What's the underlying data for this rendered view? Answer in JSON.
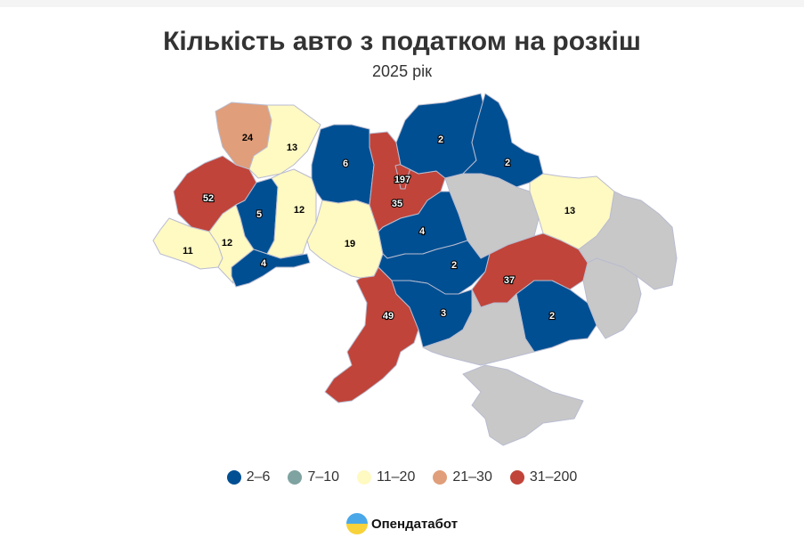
{
  "title": "Кількість авто з податком на розкіш",
  "subtitle": "2025 рік",
  "legend": [
    {
      "label": "2–6",
      "color": "#004f93"
    },
    {
      "label": "7–10",
      "color": "#7fa3a1"
    },
    {
      "label": "11–20",
      "color": "#fff9c2"
    },
    {
      "label": "21–30",
      "color": "#e09e7a"
    },
    {
      "label": "31–200",
      "color": "#c0443a"
    }
  ],
  "no_data_color": "#c8c8c8",
  "logo_text": "Опендатабот",
  "chart_data": {
    "type": "choropleth",
    "bins": [
      [
        2,
        6
      ],
      [
        7,
        10
      ],
      [
        11,
        20
      ],
      [
        21,
        30
      ],
      [
        31,
        200
      ]
    ],
    "regions": [
      {
        "value": 24
      },
      {
        "value": 13
      },
      {
        "value": 52
      },
      {
        "value": 11
      },
      {
        "value": 12
      },
      {
        "value": 5
      },
      {
        "value": 4
      },
      {
        "value": 12
      },
      {
        "value": 6
      },
      {
        "value": 19
      },
      {
        "value": 35
      },
      {
        "value": 197
      },
      {
        "value": 2
      },
      {
        "value": 2
      },
      {
        "value": 13
      },
      {
        "value": 4
      },
      {
        "value": 2
      },
      {
        "value": 49
      },
      {
        "value": 3
      },
      {
        "value": 37
      },
      {
        "value": 2
      },
      {
        "value": null
      },
      {
        "value": null
      },
      {
        "value": null
      },
      {
        "value": null
      },
      {
        "value": null
      }
    ]
  }
}
